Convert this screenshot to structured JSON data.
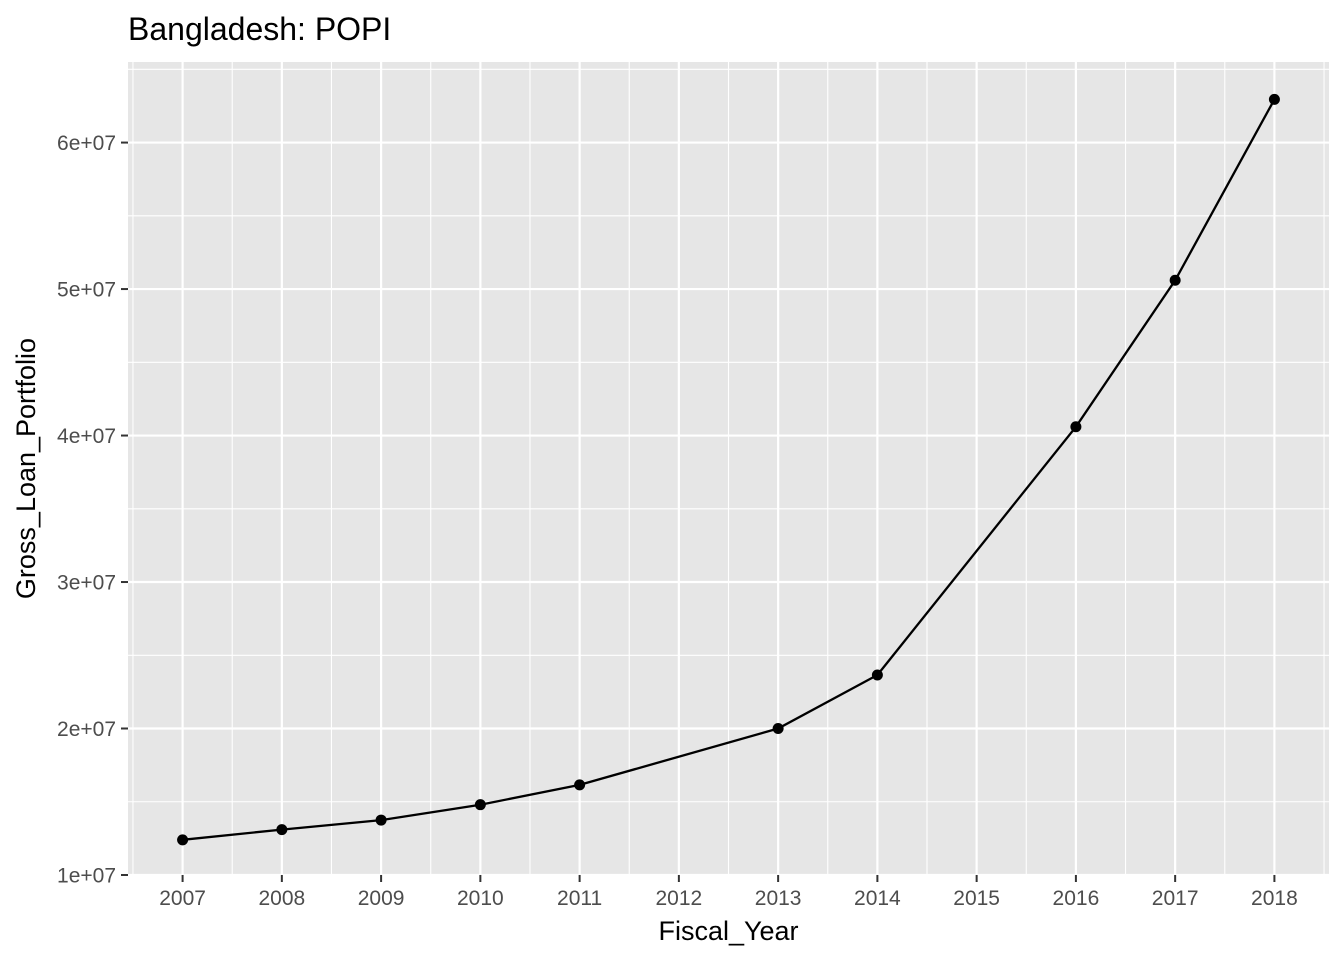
{
  "chart_data": {
    "type": "line",
    "title": "Bangladesh:  POPI",
    "xlabel": "Fiscal_Year",
    "ylabel": "Gross_Loan_Portfolio",
    "categories": [
      "2007",
      "2008",
      "2009",
      "2010",
      "2011",
      "2012",
      "2013",
      "2014",
      "2015",
      "2016",
      "2017",
      "2018"
    ],
    "x": [
      2007,
      2008,
      2009,
      2010,
      2011,
      2013,
      2014,
      2016,
      2017,
      2018
    ],
    "values": [
      12400000,
      13100000,
      13750000,
      14800000,
      16150000,
      20000000,
      23650000,
      40600000,
      50600000,
      62950000
    ],
    "yticks": [
      10000000,
      20000000,
      30000000,
      40000000,
      50000000,
      60000000
    ],
    "ytick_labels": [
      "1e+07",
      "2e+07",
      "3e+07",
      "4e+07",
      "5e+07",
      "6e+07"
    ],
    "xlim": [
      2006.45,
      2018.55
    ],
    "ylim": [
      10000000,
      65500000
    ],
    "grid": true,
    "line_color": "#000000",
    "panel_color": "#e6e6e6"
  }
}
